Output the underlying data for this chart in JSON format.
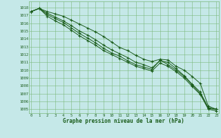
{
  "title": "Graphe pression niveau de la mer (hPa)",
  "background_color": "#c5e8e8",
  "grid_color": "#7ab87a",
  "line_color": "#1a5c1a",
  "xlim": [
    -0.3,
    23.3
  ],
  "ylim": [
    1004.5,
    1018.8
  ],
  "yticks": [
    1005,
    1006,
    1007,
    1008,
    1009,
    1010,
    1011,
    1012,
    1013,
    1014,
    1015,
    1016,
    1017,
    1018
  ],
  "xticks": [
    0,
    1,
    2,
    3,
    4,
    5,
    6,
    7,
    8,
    9,
    10,
    11,
    12,
    13,
    14,
    15,
    16,
    17,
    18,
    19,
    20,
    21,
    22,
    23
  ],
  "series": [
    [
      1017.5,
      1017.9,
      1017.5,
      1017.2,
      1016.9,
      1016.4,
      1015.9,
      1015.4,
      1014.9,
      1014.3,
      1013.6,
      1012.9,
      1012.5,
      1011.9,
      1011.4,
      1011.1,
      1011.4,
      1011.3,
      1010.5,
      1010.0,
      1009.2,
      1008.3,
      1005.4,
      1005.0
    ],
    [
      1017.5,
      1017.9,
      1017.3,
      1016.8,
      1016.3,
      1015.7,
      1015.0,
      1014.5,
      1013.9,
      1013.2,
      1012.6,
      1012.1,
      1011.6,
      1011.0,
      1010.7,
      1010.3,
      1011.2,
      1011.0,
      1010.2,
      1009.3,
      1008.2,
      1007.2,
      1005.2,
      1005.0
    ],
    [
      1017.5,
      1017.9,
      1017.1,
      1016.6,
      1016.1,
      1015.4,
      1014.7,
      1014.1,
      1013.5,
      1012.8,
      1012.2,
      1011.8,
      1011.2,
      1010.7,
      1010.4,
      1010.1,
      1011.3,
      1010.7,
      1010.0,
      1009.2,
      1008.1,
      1007.0,
      1005.1,
      1005.0
    ],
    [
      1017.5,
      1017.9,
      1016.9,
      1016.3,
      1015.8,
      1015.1,
      1014.4,
      1013.8,
      1013.2,
      1012.5,
      1012.0,
      1011.5,
      1011.0,
      1010.5,
      1010.2,
      1009.9,
      1010.9,
      1010.5,
      1009.8,
      1009.0,
      1007.9,
      1006.9,
      1005.0,
      1004.8
    ]
  ]
}
